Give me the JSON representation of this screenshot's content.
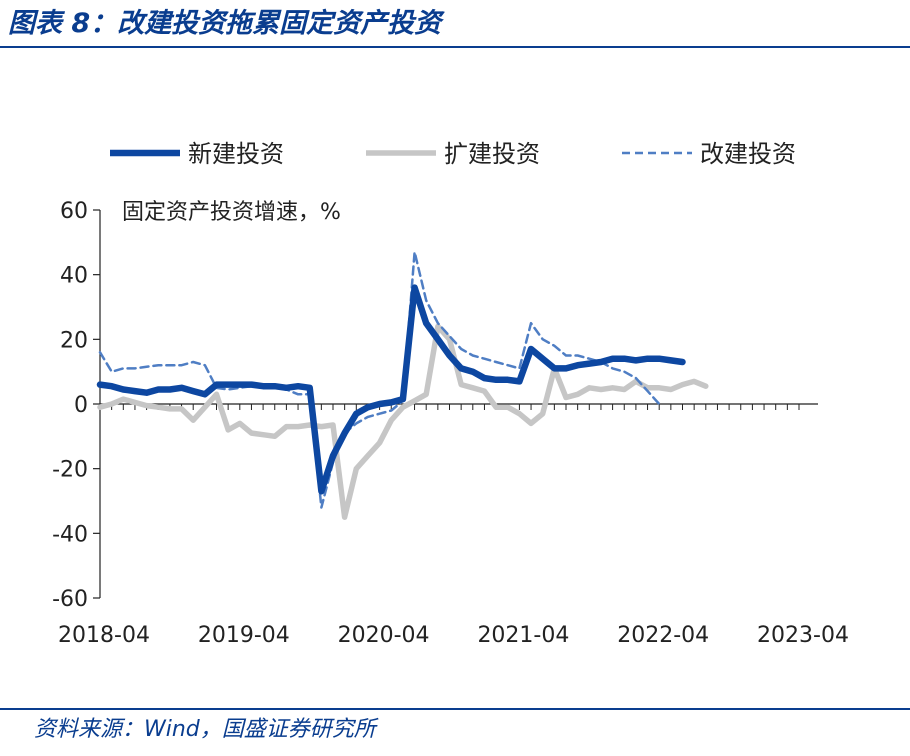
{
  "figure": {
    "title": "图表 8：改建投资拖累固定资产投资",
    "source": "资料来源：Wind，国盛证券研究所"
  },
  "colors": {
    "new_construction": "#0d47a1",
    "expansion": "#c6c6c6",
    "reconstruction": "#4f7ec4",
    "header": "#0a3d8f"
  },
  "chart_data": {
    "type": "line",
    "title": "",
    "ylabel": "固定资产投资增速，%",
    "xlabel": "",
    "ylim": [
      -60,
      60
    ],
    "yticks": [
      60,
      40,
      20,
      0,
      -20,
      -40,
      -60
    ],
    "xticks": [
      "2018-04",
      "2019-04",
      "2020-04",
      "2021-04",
      "2022-04",
      "2023-04"
    ],
    "x": [
      "2018-04",
      "2018-05",
      "2018-06",
      "2018-07",
      "2018-08",
      "2018-09",
      "2018-10",
      "2018-11",
      "2018-12",
      "2019-01",
      "2019-02",
      "2019-03",
      "2019-04",
      "2019-05",
      "2019-06",
      "2019-07",
      "2019-08",
      "2019-09",
      "2019-10",
      "2019-11",
      "2019-12",
      "2020-01",
      "2020-02",
      "2020-03",
      "2020-04",
      "2020-05",
      "2020-06",
      "2020-07",
      "2020-08",
      "2020-09",
      "2020-10",
      "2020-11",
      "2020-12",
      "2021-01",
      "2021-02",
      "2021-03",
      "2021-04",
      "2021-05",
      "2021-06",
      "2021-07",
      "2021-08",
      "2021-09",
      "2021-10",
      "2021-11",
      "2021-12",
      "2022-01",
      "2022-02",
      "2022-03",
      "2022-04",
      "2022-05",
      "2022-06",
      "2022-07",
      "2022-08",
      "2022-09",
      "2022-10",
      "2022-11",
      "2022-12",
      "2023-01",
      "2023-02",
      "2023-03",
      "2023-04"
    ],
    "legend_position": "top",
    "series": [
      {
        "name": "新建投资",
        "style": "solid-thick",
        "values": [
          6,
          5.5,
          4.5,
          4,
          3.5,
          4.5,
          4.5,
          5,
          4,
          3,
          6,
          6,
          6,
          6,
          5.5,
          5.5,
          5,
          5.5,
          5,
          -27,
          -16,
          -9,
          -3,
          -1,
          0,
          0.5,
          1.5,
          36,
          25,
          20,
          15,
          11,
          10,
          8,
          7.5,
          7.5,
          7,
          17,
          14,
          11,
          11,
          12,
          12.5,
          13,
          14,
          14,
          13.5,
          14,
          14,
          13.5,
          13,
          null,
          null,
          null,
          null,
          null,
          null,
          null,
          null,
          null,
          null
        ]
      },
      {
        "name": "扩建投资",
        "style": "solid-thick",
        "values": [
          -1,
          0,
          1.5,
          0.5,
          -0.5,
          -1,
          -1.5,
          -1.5,
          -5,
          -1,
          3,
          -8,
          -6,
          -9,
          -9.5,
          -10,
          -7,
          -7,
          -6.5,
          -7,
          -6.5,
          -35,
          -20,
          -16,
          -12,
          -5,
          -1,
          1,
          3,
          24,
          20,
          6,
          5,
          4,
          -1,
          -1,
          -3,
          -6,
          -3,
          11,
          2,
          3,
          5,
          4.5,
          5,
          4.5,
          7,
          5,
          5,
          4.5,
          6,
          7,
          5.5,
          null,
          null,
          null,
          null,
          null,
          null,
          null,
          null
        ]
      },
      {
        "name": "改建投资",
        "style": "dashed",
        "values": [
          16,
          10,
          11,
          11,
          11.5,
          12,
          12,
          12,
          13,
          12,
          5,
          4.5,
          5,
          5.5,
          5,
          5,
          4.5,
          3,
          3,
          -32,
          -18,
          -9,
          -6,
          -4,
          -3,
          -2,
          1,
          47,
          32,
          25,
          21,
          17,
          15,
          14,
          13,
          12,
          11,
          25,
          20,
          18,
          15,
          15,
          14,
          13,
          11,
          10,
          8,
          4,
          0,
          null,
          null,
          null,
          null,
          null,
          null,
          null,
          null,
          null,
          null,
          null,
          null
        ]
      }
    ]
  }
}
